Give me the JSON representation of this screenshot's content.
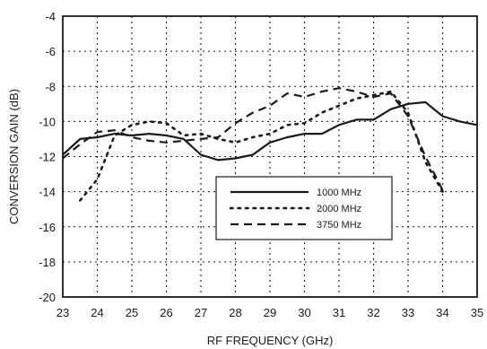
{
  "chart_data": {
    "type": "line",
    "title": "",
    "xlabel": "RF FREQUENCY (GHz)",
    "ylabel": "CONVERSION GAIN (dB)",
    "xlim": [
      23,
      35
    ],
    "ylim": [
      -20,
      -4
    ],
    "xticks": [
      23,
      24,
      25,
      26,
      27,
      28,
      29,
      30,
      31,
      32,
      33,
      34,
      35
    ],
    "yticks": [
      -20,
      -18,
      -16,
      -14,
      -12,
      -10,
      -8,
      -6,
      -4
    ],
    "grid": true,
    "legend_position": "lower-right",
    "series": [
      {
        "name": "1000 MHz",
        "style": "solid",
        "color": "#1a1a1a",
        "x": [
          23.0,
          23.5,
          24.0,
          24.5,
          25.0,
          25.5,
          26.0,
          26.5,
          27.0,
          27.5,
          28.0,
          28.5,
          29.0,
          29.5,
          30.0,
          30.5,
          31.0,
          31.5,
          32.0,
          32.5,
          33.0,
          33.5,
          34.0,
          34.5,
          35.0
        ],
        "y": [
          -11.9,
          -11.0,
          -10.9,
          -10.7,
          -10.8,
          -10.7,
          -10.8,
          -11.0,
          -11.9,
          -12.2,
          -12.1,
          -11.9,
          -11.2,
          -10.9,
          -10.7,
          -10.7,
          -10.2,
          -9.9,
          -9.9,
          -9.3,
          -9.0,
          -8.9,
          -9.7,
          -10.0,
          -10.2
        ]
      },
      {
        "name": "2000 MHz",
        "style": "dotted",
        "color": "#1a1a1a",
        "x": [
          23.5,
          24.0,
          24.5,
          25.0,
          25.5,
          26.0,
          26.5,
          27.0,
          27.5,
          28.0,
          28.5,
          29.0,
          29.5,
          30.0,
          30.5,
          31.0,
          31.5,
          32.0,
          32.5,
          33.0,
          33.5,
          34.0
        ],
        "y": [
          -14.5,
          -13.3,
          -10.8,
          -10.2,
          -10.0,
          -10.1,
          -10.8,
          -10.7,
          -11.0,
          -11.2,
          -10.9,
          -10.7,
          -10.2,
          -10.1,
          -9.5,
          -9.1,
          -8.7,
          -8.5,
          -8.3,
          -9.5,
          -12.3,
          -14.0
        ]
      },
      {
        "name": "3750 MHz",
        "style": "dashed",
        "color": "#1a1a1a",
        "x": [
          23.0,
          23.5,
          24.0,
          24.5,
          25.0,
          25.5,
          26.0,
          26.5,
          27.0,
          27.5,
          28.0,
          28.5,
          29.0,
          29.5,
          30.0,
          30.5,
          31.0,
          31.5,
          32.0,
          32.5,
          33.0,
          33.5,
          34.0
        ],
        "y": [
          -12.1,
          -11.3,
          -10.6,
          -10.5,
          -10.9,
          -11.1,
          -11.2,
          -11.1,
          -11.0,
          -10.9,
          -10.1,
          -9.5,
          -9.1,
          -8.4,
          -8.6,
          -8.3,
          -8.1,
          -8.3,
          -8.6,
          -8.4,
          -9.7,
          -12.0,
          -13.9
        ]
      }
    ]
  }
}
